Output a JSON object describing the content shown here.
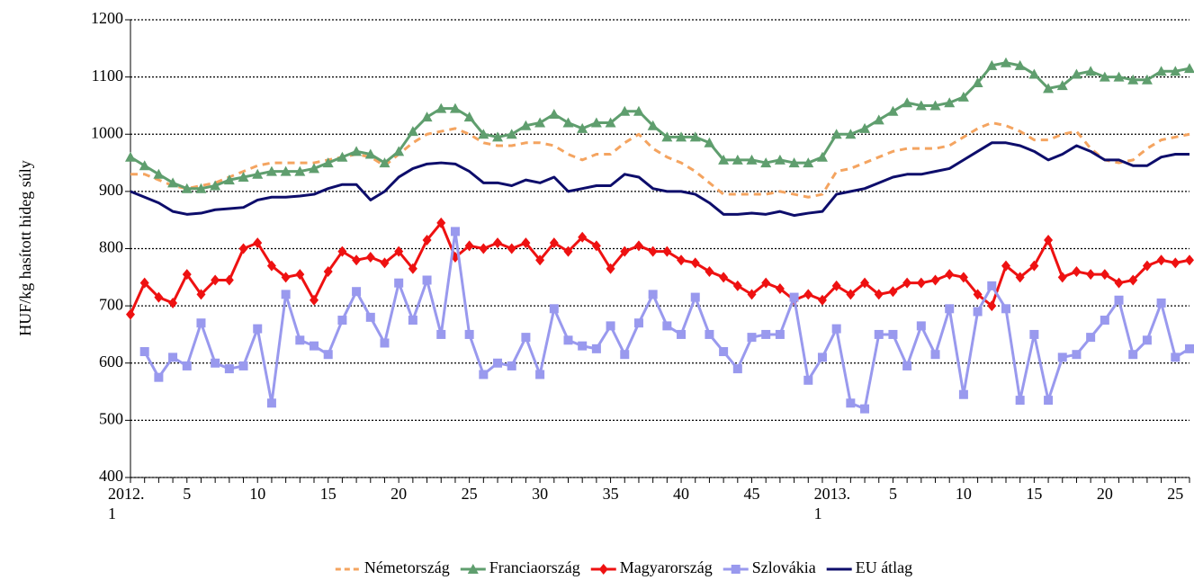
{
  "chart_data": {
    "type": "line",
    "ylabel": "HUF/kg hasított hideg súly",
    "categories": [
      "2012. 1",
      null,
      null,
      null,
      "5",
      null,
      null,
      null,
      null,
      "10",
      null,
      null,
      null,
      null,
      "15",
      null,
      null,
      null,
      null,
      "20",
      null,
      null,
      null,
      null,
      "25",
      null,
      null,
      null,
      null,
      "30",
      null,
      null,
      null,
      null,
      "35",
      null,
      null,
      null,
      null,
      "40",
      null,
      null,
      null,
      null,
      "45",
      null,
      null,
      null,
      null,
      null,
      "2013. 1",
      null,
      null,
      null,
      "5",
      null,
      null,
      null,
      null,
      "10",
      null,
      null,
      null,
      null,
      "15",
      null,
      null,
      null,
      null,
      "20",
      null,
      null,
      null,
      null,
      "25",
      null
    ],
    "ylim": [
      400,
      1200
    ],
    "yticks": [
      400,
      500,
      600,
      700,
      800,
      900,
      1000,
      1100,
      1200
    ],
    "grid": true,
    "legend": "bottom",
    "series": [
      {
        "name": "Németország",
        "color": "#f4a460",
        "dash": true,
        "marker": "none",
        "values": [
          930,
          930,
          920,
          910,
          905,
          910,
          915,
          925,
          935,
          945,
          950,
          950,
          950,
          950,
          955,
          960,
          965,
          960,
          945,
          965,
          985,
          1000,
          1005,
          1010,
          1000,
          985,
          980,
          980,
          985,
          985,
          980,
          965,
          955,
          965,
          965,
          985,
          1000,
          975,
          960,
          950,
          935,
          915,
          895,
          895,
          895,
          895,
          900,
          895,
          890,
          895,
          935,
          940,
          950,
          960,
          970,
          975,
          975,
          975,
          980,
          995,
          1010,
          1020,
          1015,
          1005,
          990,
          990,
          1000,
          1005,
          975,
          955,
          950,
          955,
          975,
          990,
          995,
          1000
        ]
      },
      {
        "name": "Franciaország",
        "color": "#5f9e6e",
        "dash": false,
        "marker": "triangle",
        "values": [
          960,
          945,
          930,
          915,
          905,
          905,
          910,
          920,
          925,
          930,
          935,
          935,
          935,
          940,
          950,
          960,
          970,
          965,
          950,
          970,
          1005,
          1030,
          1045,
          1045,
          1030,
          1000,
          995,
          1000,
          1015,
          1020,
          1035,
          1020,
          1010,
          1020,
          1020,
          1040,
          1040,
          1015,
          995,
          995,
          995,
          985,
          955,
          955,
          955,
          950,
          955,
          950,
          950,
          960,
          1000,
          1000,
          1010,
          1025,
          1040,
          1055,
          1050,
          1050,
          1055,
          1065,
          1090,
          1120,
          1125,
          1120,
          1105,
          1080,
          1085,
          1105,
          1110,
          1100,
          1100,
          1095,
          1095,
          1110,
          1110,
          1115
        ]
      },
      {
        "name": "Magyarország",
        "color": "#ee1111",
        "dash": false,
        "marker": "diamond",
        "values": [
          685,
          740,
          715,
          705,
          755,
          720,
          745,
          745,
          800,
          810,
          770,
          750,
          755,
          710,
          760,
          795,
          780,
          785,
          775,
          795,
          765,
          815,
          845,
          785,
          805,
          800,
          810,
          800,
          810,
          780,
          810,
          795,
          820,
          805,
          765,
          795,
          805,
          795,
          795,
          780,
          775,
          760,
          750,
          735,
          720,
          740,
          730,
          710,
          720,
          710,
          735,
          720,
          740,
          720,
          725,
          740,
          740,
          745,
          755,
          750,
          720,
          700,
          770,
          750,
          770,
          815,
          750,
          760,
          755,
          755,
          740,
          745,
          770,
          780,
          775,
          780
        ]
      },
      {
        "name": "Szlovákia",
        "color": "#9999ee",
        "dash": false,
        "marker": "square",
        "values": [
          null,
          620,
          575,
          610,
          595,
          670,
          600,
          590,
          595,
          660,
          530,
          720,
          640,
          630,
          615,
          675,
          725,
          680,
          635,
          740,
          675,
          745,
          650,
          830,
          650,
          580,
          600,
          595,
          645,
          580,
          695,
          640,
          630,
          625,
          665,
          615,
          670,
          720,
          665,
          650,
          715,
          650,
          620,
          590,
          645,
          650,
          650,
          715,
          570,
          610,
          660,
          530,
          520,
          650,
          650,
          595,
          665,
          615,
          695,
          545,
          690,
          735,
          695,
          535,
          650,
          535,
          610,
          615,
          645,
          675,
          710,
          615,
          640,
          705,
          610,
          625
        ]
      },
      {
        "name": "EU átlag",
        "color": "#0d0d6b",
        "dash": false,
        "marker": "none",
        "values": [
          900,
          890,
          880,
          865,
          860,
          862,
          868,
          870,
          872,
          885,
          890,
          890,
          892,
          895,
          905,
          912,
          912,
          885,
          900,
          925,
          940,
          948,
          950,
          948,
          935,
          915,
          915,
          910,
          920,
          915,
          925,
          900,
          905,
          910,
          910,
          930,
          925,
          905,
          900,
          900,
          895,
          880,
          860,
          860,
          862,
          860,
          865,
          858,
          862,
          865,
          895,
          900,
          905,
          915,
          925,
          930,
          930,
          935,
          940,
          955,
          970,
          985,
          985,
          980,
          970,
          955,
          965,
          980,
          970,
          955,
          955,
          945,
          945,
          960,
          965,
          965
        ]
      }
    ]
  }
}
